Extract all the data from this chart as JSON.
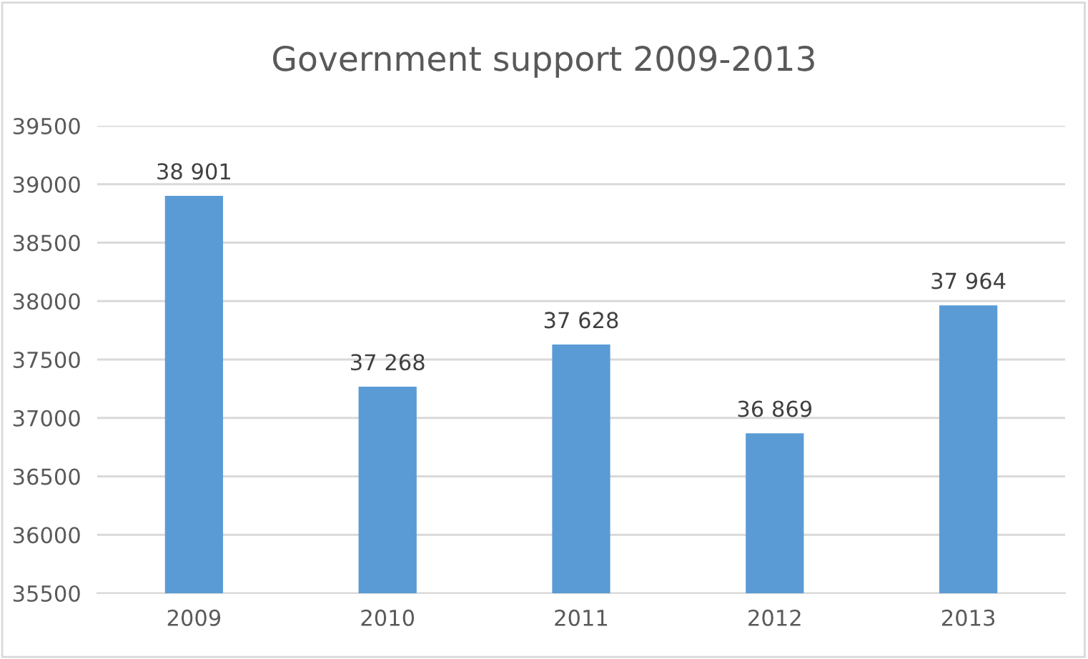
{
  "chart_data": {
    "type": "bar",
    "title": "Government support 2009-2013",
    "categories": [
      "2009",
      "2010",
      "2011",
      "2012",
      "2013"
    ],
    "values": [
      38901,
      37268,
      37628,
      36869,
      37964
    ],
    "value_labels": [
      "38 901",
      "37 268",
      "37 628",
      "36 869",
      "37 964"
    ],
    "color": "#5b9bd5",
    "ylim": [
      35500,
      39500
    ],
    "yticks": [
      35500,
      36000,
      36500,
      37000,
      37500,
      38000,
      38500,
      39000,
      39500
    ],
    "grid": "y"
  }
}
